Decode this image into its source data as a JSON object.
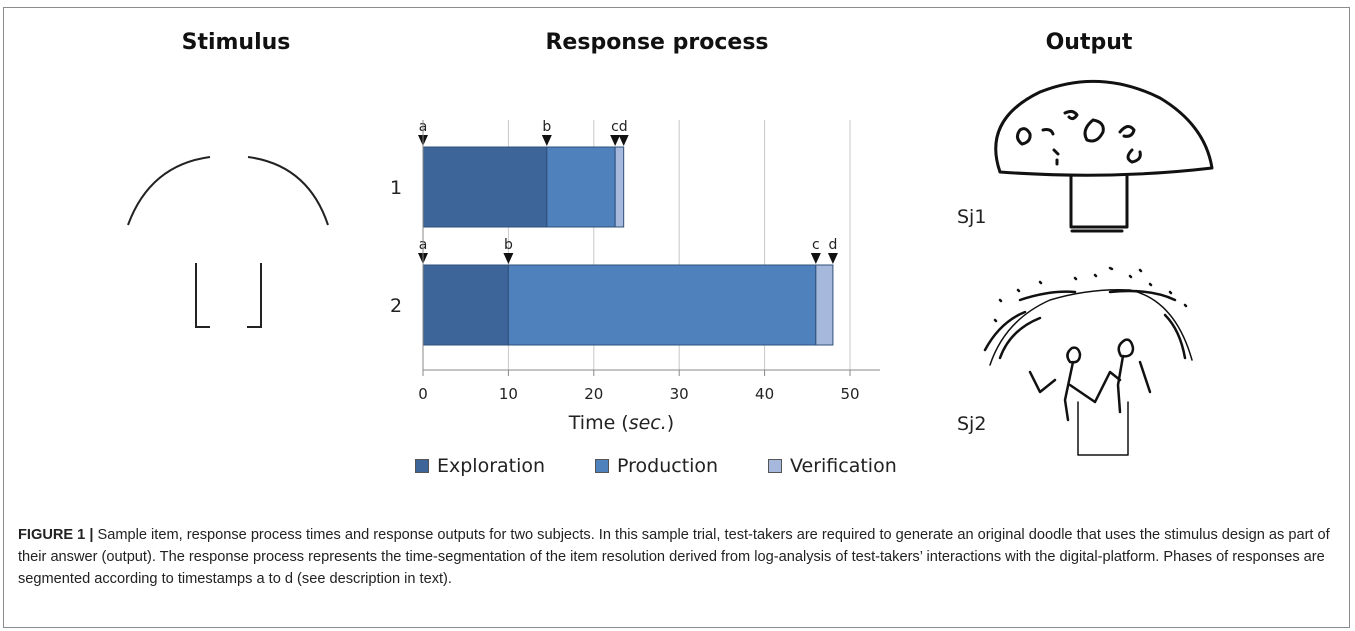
{
  "titles": {
    "stimulus": "Stimulus",
    "response": "Response process",
    "output": "Output"
  },
  "chart_data": {
    "type": "bar",
    "orientation": "horizontal",
    "stacked": true,
    "categories": [
      "1",
      "2"
    ],
    "series": [
      {
        "name": "Exploration",
        "values": [
          14.5,
          10
        ],
        "color": "#3e6599"
      },
      {
        "name": "Production",
        "values": [
          8,
          36
        ],
        "color": "#4f81bd"
      },
      {
        "name": "Verification",
        "values": [
          1,
          2
        ],
        "color": "#a6b9dc"
      }
    ],
    "markers": [
      {
        "category": "1",
        "labels": [
          "a",
          "b",
          "c",
          "d"
        ],
        "times": [
          0,
          14.5,
          22.5,
          23.5
        ]
      },
      {
        "category": "2",
        "labels": [
          "a",
          "b",
          "c",
          "d"
        ],
        "times": [
          0,
          10,
          46,
          48
        ]
      }
    ],
    "marker_label_row1": "cd",
    "xlabel": "Time",
    "xlabel_unit": "sec.",
    "xlim": [
      0,
      53
    ],
    "xticks": [
      "0",
      "10",
      "20",
      "30",
      "40",
      "50"
    ],
    "grid": true,
    "legend": "bottom"
  },
  "output": {
    "sj1_label": "Sj1",
    "sj2_label": "Sj2"
  },
  "caption": {
    "label": "FIGURE 1 |",
    "text": " Sample item, response process times and response outputs for two subjects. In this sample trial, test-takers are required to generate an original doodle that uses the stimulus design as part of their answer (output). The response process represents the time-segmentation of the item resolution derived from log-analysis of test-takers’ interactions with the digital-platform. Phases of responses are segmented according to timestamps a to d (see description in text)."
  }
}
